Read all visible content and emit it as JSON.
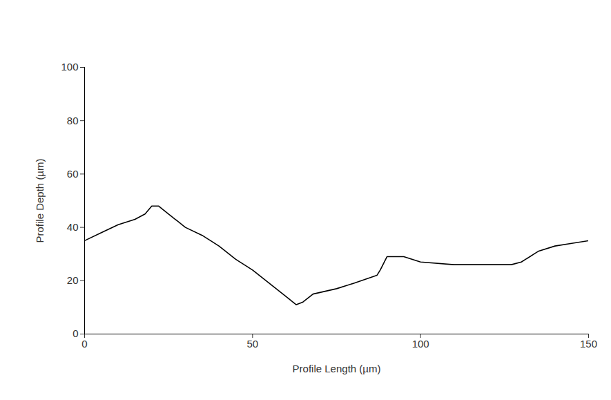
{
  "chart_data": {
    "type": "line",
    "x_label": "Profile Length (µm)",
    "y_label": "Profile Depth (µm)",
    "x": [
      0,
      5,
      10,
      15,
      18,
      20,
      22,
      25,
      30,
      35,
      40,
      45,
      50,
      55,
      60,
      63,
      65,
      68,
      75,
      80,
      87,
      88,
      90,
      95,
      100,
      110,
      120,
      127,
      130,
      135,
      140,
      145,
      150
    ],
    "values": [
      35,
      38,
      41,
      43,
      45,
      48,
      48,
      45,
      40,
      37,
      33,
      28,
      24,
      19,
      14,
      11,
      12,
      15,
      17,
      19,
      22,
      24,
      29,
      29,
      27,
      26,
      26,
      26,
      27,
      31,
      33,
      34,
      35
    ],
    "color": "#000000",
    "xlim": [
      0,
      150
    ],
    "xticks": [
      0,
      50,
      100,
      150
    ],
    "ylim": [
      0,
      100
    ],
    "yticks": [
      0,
      20,
      40,
      60,
      80,
      100
    ],
    "grid": false
  }
}
